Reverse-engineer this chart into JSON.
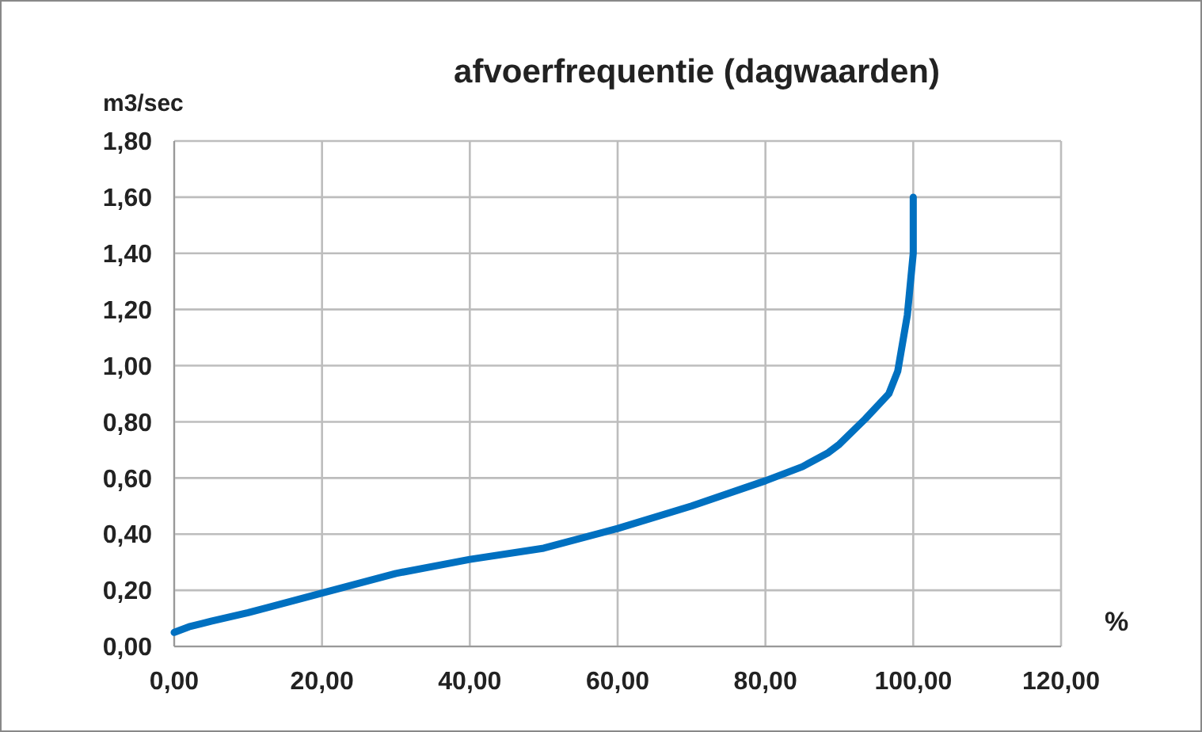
{
  "chart_data": {
    "type": "line",
    "title": "afvoerfrequentie (dagwaarden)",
    "ylabel": "m3/sec",
    "xlabel": "%",
    "series": [
      {
        "color": "#0070c0",
        "x": [
          0,
          2,
          5,
          10,
          20,
          30,
          40,
          50,
          60,
          70,
          80,
          85,
          88.5,
          90,
          93.5,
          96.7,
          97.9,
          99.2,
          100,
          100
        ],
        "values": [
          0.05,
          0.07,
          0.09,
          0.12,
          0.19,
          0.26,
          0.31,
          0.35,
          0.42,
          0.5,
          0.59,
          0.64,
          0.69,
          0.72,
          0.81,
          0.9,
          0.98,
          1.18,
          1.4,
          1.6
        ]
      }
    ],
    "xlim": [
      0,
      120
    ],
    "xticks": [
      {
        "value": 0,
        "label": "0,00"
      },
      {
        "value": 20,
        "label": "20,00"
      },
      {
        "value": 40,
        "label": "40,00"
      },
      {
        "value": 60,
        "label": "60,00"
      },
      {
        "value": 80,
        "label": "80,00"
      },
      {
        "value": 100,
        "label": "100,00"
      },
      {
        "value": 120,
        "label": "120,00"
      }
    ],
    "ylim": [
      0,
      1.8
    ],
    "yticks": [
      {
        "value": 0,
        "label": "0,00"
      },
      {
        "value": 0.2,
        "label": "0,20"
      },
      {
        "value": 0.4,
        "label": "0,40"
      },
      {
        "value": 0.6,
        "label": "0,60"
      },
      {
        "value": 0.8,
        "label": "0,80"
      },
      {
        "value": 1,
        "label": "1,00"
      },
      {
        "value": 1.2,
        "label": "1,20"
      },
      {
        "value": 1.4,
        "label": "1,40"
      },
      {
        "value": 1.6,
        "label": "1,60"
      },
      {
        "value": 1.8,
        "label": "1,80"
      }
    ],
    "grid": true,
    "marker": "none",
    "line_style": "solid"
  }
}
